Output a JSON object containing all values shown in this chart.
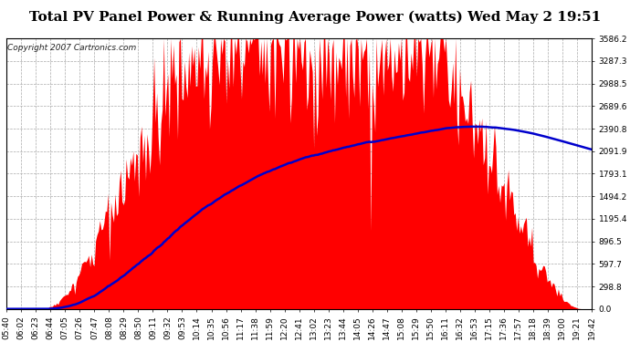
{
  "title": "Total PV Panel Power & Running Average Power (watts) Wed May 2 19:51",
  "copyright": "Copyright 2007 Cartronics.com",
  "background_color": "#ffffff",
  "plot_bg_color": "#ffffff",
  "grid_color": "#aaaaaa",
  "bar_color": "#ff0000",
  "line_color": "#0000cc",
  "yticks": [
    0.0,
    298.8,
    597.7,
    896.5,
    1195.4,
    1494.2,
    1793.1,
    2091.9,
    2390.8,
    2689.6,
    2988.5,
    3287.3,
    3586.2
  ],
  "ymax": 3586.2,
  "xtick_labels": [
    "05:40",
    "06:02",
    "06:23",
    "06:44",
    "07:05",
    "07:26",
    "07:47",
    "08:08",
    "08:29",
    "08:50",
    "09:11",
    "09:32",
    "09:53",
    "10:14",
    "10:35",
    "10:56",
    "11:17",
    "11:38",
    "11:59",
    "12:20",
    "12:41",
    "13:02",
    "13:23",
    "13:44",
    "14:05",
    "14:26",
    "14:47",
    "15:08",
    "15:29",
    "15:50",
    "16:11",
    "16:32",
    "16:53",
    "17:15",
    "17:36",
    "17:57",
    "18:18",
    "18:39",
    "19:00",
    "19:21",
    "19:42"
  ],
  "title_fontsize": 11,
  "copyright_fontsize": 6.5,
  "tick_fontsize": 6.5
}
